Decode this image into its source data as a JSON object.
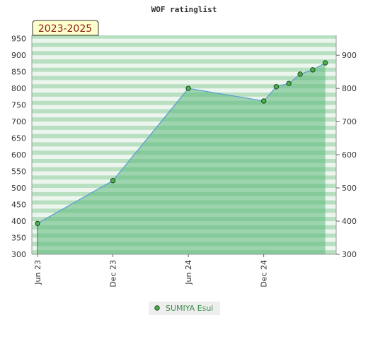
{
  "chart_data": {
    "type": "area",
    "title": "WOF ratinglist",
    "period_label": "2023-2025",
    "xlabel": "",
    "ylabel": "",
    "x_ticks": [
      "Jun 23",
      "Dec 23",
      "Jun 24",
      "Dec 24"
    ],
    "x_tick_months": [
      0,
      6,
      12,
      18
    ],
    "x_range_months": [
      0,
      23.2
    ],
    "y_left": {
      "ticks": [
        300,
        350,
        400,
        450,
        500,
        550,
        600,
        650,
        700,
        750,
        800,
        850,
        900,
        950
      ],
      "range": [
        300,
        960
      ]
    },
    "y_right": {
      "ticks": [
        300,
        400,
        500,
        600,
        700,
        800,
        900
      ],
      "range": [
        300,
        960
      ]
    },
    "grid": "horizontal bands",
    "legend_position": "bottom-center",
    "series": [
      {
        "name": "SUMIYA Esui",
        "points": [
          {
            "x": "Jun 2023",
            "m": 0.0,
            "y": 393
          },
          {
            "x": "Dec 2023",
            "m": 6.0,
            "y": 522
          },
          {
            "x": "Jun 2024",
            "m": 12.0,
            "y": 800
          },
          {
            "x": "Dec 2024",
            "m": 18.0,
            "y": 762
          },
          {
            "x": "Jan 2025",
            "m": 19.0,
            "y": 805
          },
          {
            "x": "Feb 2025",
            "m": 20.0,
            "y": 815
          },
          {
            "x": "Mar 2025",
            "m": 20.9,
            "y": 843
          },
          {
            "x": "Apr 2025",
            "m": 21.9,
            "y": 856
          },
          {
            "x": "May 2025",
            "m": 22.9,
            "y": 877
          }
        ]
      }
    ],
    "colors": {
      "area_fill": "#5cb87a",
      "line": "#5b9bd5",
      "marker": "#4caf50",
      "marker_stroke": "#1a4d1a",
      "band_dark": "#b7dfc0",
      "band_light": "#ecf6ee",
      "period_bg": "#ffffcc",
      "legend_bg": "#eeeeee"
    }
  }
}
